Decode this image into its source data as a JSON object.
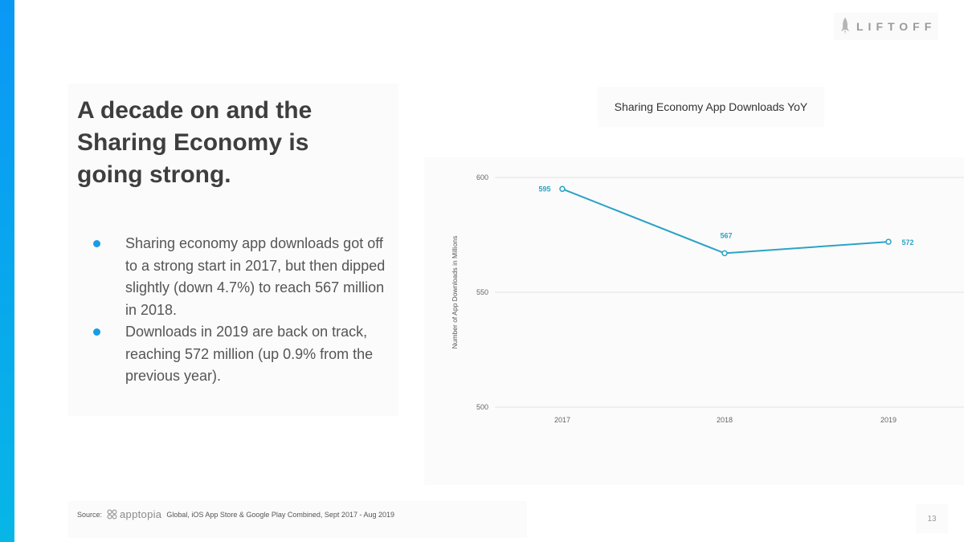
{
  "logo": {
    "text": "LIFTOFF"
  },
  "headline": "A decade on and the Sharing Economy is going strong.",
  "bullets": [
    "Sharing economy app downloads got off to a strong start in 2017, but then dipped slightly (down 4.7%) to reach 567 million in 2018.",
    "Downloads in 2019 are back on track, reaching 572 million (up 0.9% from the previous year)."
  ],
  "chart_data": {
    "type": "line",
    "title": "Sharing Economy App Downloads YoY",
    "xlabel": "",
    "ylabel": "Number of App Downloads in Millions",
    "categories": [
      "2017",
      "2018",
      "2019"
    ],
    "series": [
      {
        "name": "App Downloads",
        "values": [
          595,
          567,
          572
        ]
      }
    ],
    "data_labels": [
      "595",
      "567",
      "572"
    ],
    "ylim": [
      500,
      600
    ],
    "yticks": [
      500,
      550,
      600
    ],
    "ytick_labels": [
      "500",
      "550",
      "600"
    ],
    "grid": true,
    "legend": "none",
    "colors": {
      "line": "#2ba3c6",
      "grid": "#e2e2e2"
    }
  },
  "footer": {
    "source_label": "Source:",
    "brand": "apptopia",
    "source_text": "Global, iOS App Store & Google Play Combined, Sept 2017 - Aug 2019",
    "page_number": "13"
  },
  "colors": {
    "accent": "#0a98f5",
    "bullet": "#1a9be6",
    "headline": "#3e3e3e"
  }
}
